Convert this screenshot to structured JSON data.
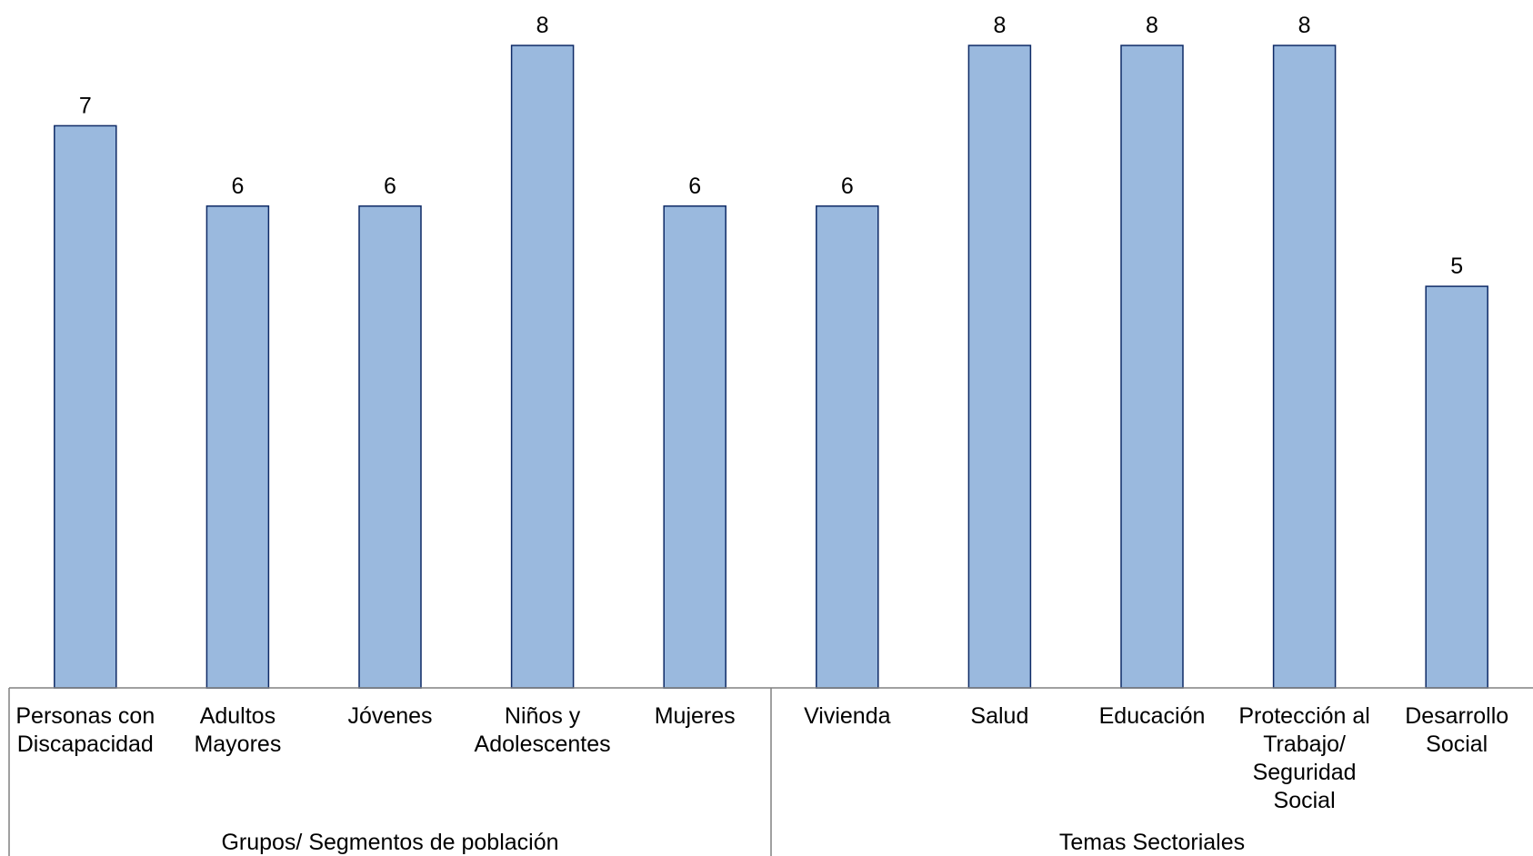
{
  "chart_data": {
    "type": "bar",
    "categories": [
      "Personas con Discapacidad",
      "Adultos Mayores",
      "Jóvenes",
      "Niños y Adolescentes",
      "Mujeres",
      "Vivienda",
      "Salud",
      "Educación",
      "Protección al Trabajo/ Seguridad Social",
      "Desarrollo Social"
    ],
    "category_lines": [
      [
        "Personas con",
        "Discapacidad"
      ],
      [
        "Adultos",
        "Mayores"
      ],
      [
        "Jóvenes"
      ],
      [
        "Niños y",
        "Adolescentes"
      ],
      [
        "Mujeres"
      ],
      [
        "Vivienda"
      ],
      [
        "Salud"
      ],
      [
        "Educación"
      ],
      [
        "Protección al",
        "Trabajo/",
        "Seguridad",
        "Social"
      ],
      [
        "Desarrollo",
        "Social"
      ]
    ],
    "values": [
      7,
      6,
      6,
      8,
      6,
      6,
      8,
      8,
      8,
      5
    ],
    "groups": [
      {
        "name": "Grupos/ Segmentos de población",
        "start": 0,
        "end": 4
      },
      {
        "name": "Temas Sectoriales",
        "start": 5,
        "end": 9
      }
    ],
    "title": "",
    "xlabel": "",
    "ylabel": "",
    "ylim": [
      0,
      8
    ],
    "grid": false,
    "data_labels": true,
    "colors": {
      "bar_fill": "#9ab9de",
      "bar_stroke": "#0e2a66",
      "axis": "#808080"
    }
  }
}
